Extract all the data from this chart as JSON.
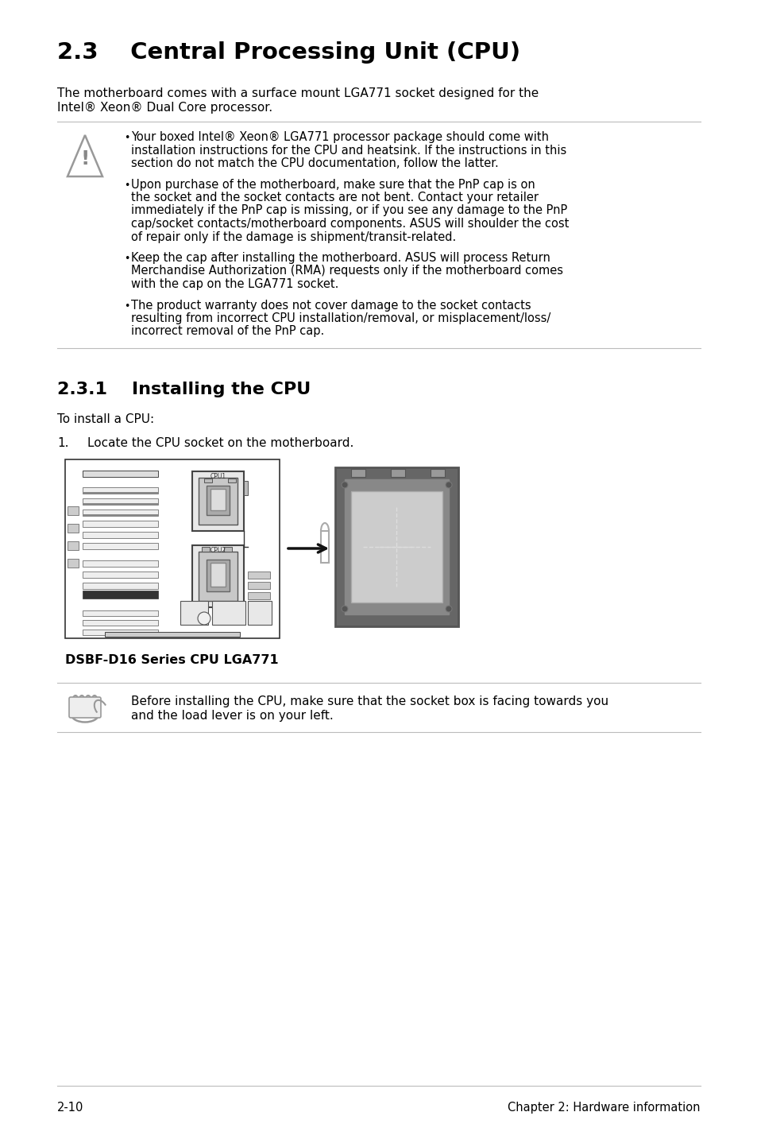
{
  "title": "2.3    Central Processing Unit (CPU)",
  "intro_line1": "The motherboard comes with a surface mount LGA771 socket designed for the",
  "intro_line2": "Intel® Xeon® Dual Core processor.",
  "warning_bullets": [
    "Your boxed Intel® Xeon® LGA771 processor package should come with\ninstallation instructions for the CPU and heatsink. If the instructions in this\nsection do not match the CPU documentation, follow the latter.",
    "Upon purchase of the motherboard, make sure that the PnP cap is on\nthe socket and the socket contacts are not bent. Contact your retailer\nimmediately if the PnP cap is missing, or if you see any damage to the PnP\ncap/socket contacts/motherboard components. ASUS will shoulder the cost\nof repair only if the damage is shipment/transit-related.",
    "Keep the cap after installing the motherboard. ASUS will process Return\nMerchandise Authorization (RMA) requests only if the motherboard comes\nwith the cap on the LGA771 socket.",
    "The product warranty does not cover damage to the socket contacts\nresulting from incorrect CPU installation/removal, or misplacement/loss/\nincorrect removal of the PnP cap."
  ],
  "section_title": "2.3.1    Installing the CPU",
  "step_intro": "To install a CPU:",
  "step1_num": "1.",
  "step1_text": "Locate the CPU socket on the motherboard.",
  "image_caption": "DSBF-D16 Series CPU LGA771",
  "note_line1": "Before installing the CPU, make sure that the socket box is facing towards you",
  "note_line2": "and the load lever is on your left.",
  "footer_left": "2-10",
  "footer_right": "Chapter 2: Hardware information",
  "bg_color": "#ffffff",
  "text_color": "#000000",
  "line_color": "#bbbbbb"
}
